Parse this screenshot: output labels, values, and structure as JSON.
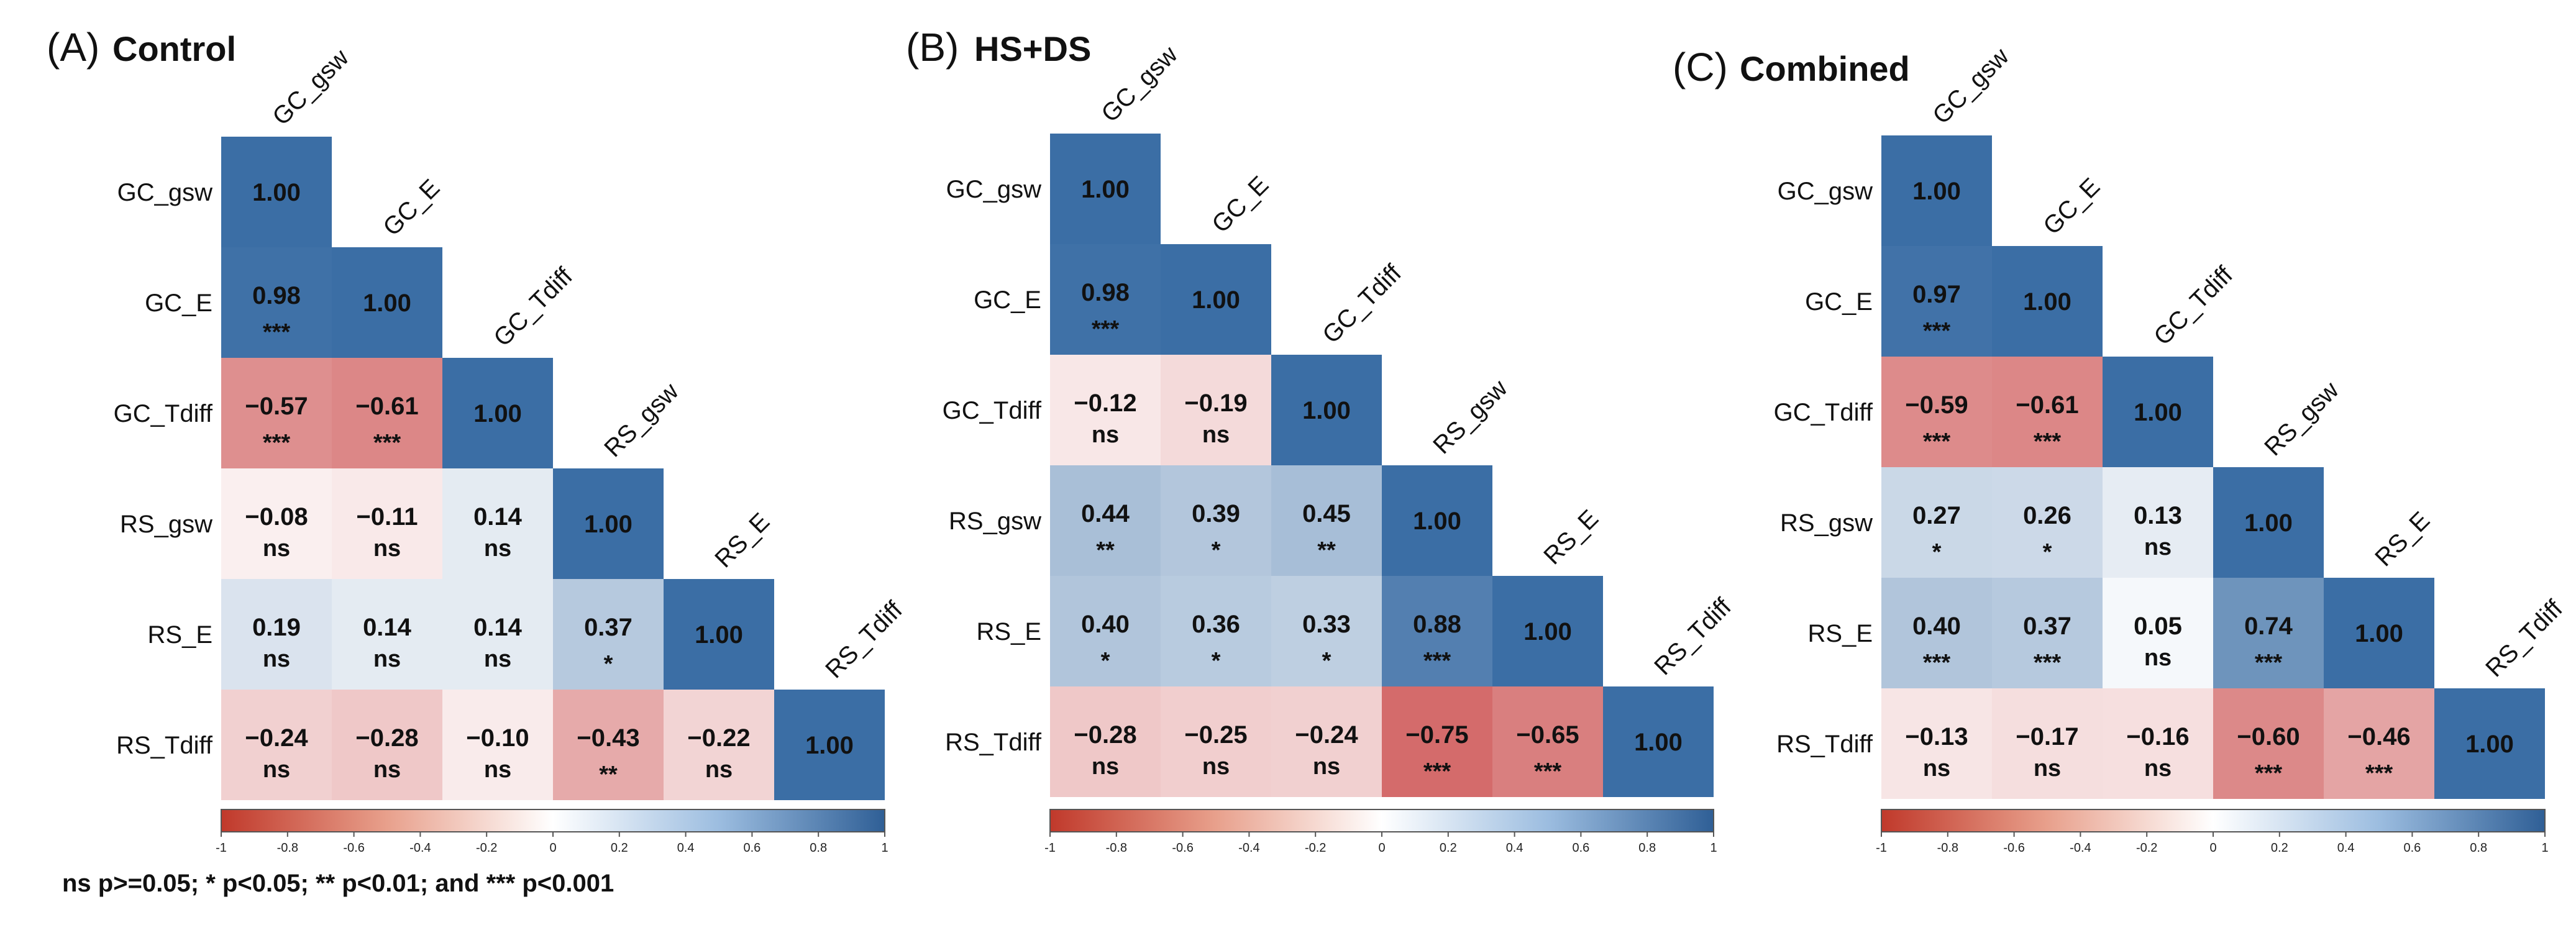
{
  "chart_data": [
    {
      "type": "heatmap",
      "panel_letter": "(A)",
      "title": "Control",
      "variables": [
        "GC_gsw",
        "GC_E",
        "GC_Tdiff",
        "RS_gsw",
        "RS_E",
        "RS_Tdiff"
      ],
      "values": [
        [
          1.0
        ],
        [
          0.98,
          1.0
        ],
        [
          -0.57,
          -0.61,
          1.0
        ],
        [
          -0.08,
          -0.11,
          0.14,
          1.0
        ],
        [
          0.19,
          0.14,
          0.14,
          0.37,
          1.0
        ],
        [
          -0.24,
          -0.28,
          -0.1,
          -0.43,
          -0.22,
          1.0
        ]
      ],
      "labels": [
        [
          "1.00"
        ],
        [
          "0.98",
          "1.00"
        ],
        [
          "−0.57",
          "−0.61",
          "1.00"
        ],
        [
          "−0.08",
          "−0.11",
          "0.14",
          "1.00"
        ],
        [
          "0.19",
          "0.14",
          "0.14",
          "0.37",
          "1.00"
        ],
        [
          "−0.24",
          "−0.28",
          "−0.10",
          "−0.43",
          "−0.22",
          "1.00"
        ]
      ],
      "significance": [
        [
          ""
        ],
        [
          "***",
          ""
        ],
        [
          "***",
          "***",
          ""
        ],
        [
          "ns",
          "ns",
          "ns",
          ""
        ],
        [
          "ns",
          "ns",
          "ns",
          "*",
          ""
        ],
        [
          "ns",
          "ns",
          "ns",
          "**",
          "ns",
          ""
        ]
      ],
      "colorbar": {
        "range": [
          -1,
          1
        ],
        "ticks": [
          "-1",
          "-0.8",
          "-0.6",
          "-0.4",
          "-0.2",
          "0",
          "0.2",
          "0.4",
          "0.6",
          "0.8",
          "1"
        ]
      }
    },
    {
      "type": "heatmap",
      "panel_letter": "(B)",
      "title": "HS+DS",
      "variables": [
        "GC_gsw",
        "GC_E",
        "GC_Tdiff",
        "RS_gsw",
        "RS_E",
        "RS_Tdiff"
      ],
      "values": [
        [
          1.0
        ],
        [
          0.98,
          1.0
        ],
        [
          -0.12,
          -0.19,
          1.0
        ],
        [
          0.44,
          0.39,
          0.45,
          1.0
        ],
        [
          0.4,
          0.36,
          0.33,
          0.88,
          1.0
        ],
        [
          -0.28,
          -0.25,
          -0.24,
          -0.75,
          -0.65,
          1.0
        ]
      ],
      "labels": [
        [
          "1.00"
        ],
        [
          "0.98",
          "1.00"
        ],
        [
          "−0.12",
          "−0.19",
          "1.00"
        ],
        [
          "0.44",
          "0.39",
          "0.45",
          "1.00"
        ],
        [
          "0.40",
          "0.36",
          "0.33",
          "0.88",
          "1.00"
        ],
        [
          "−0.28",
          "−0.25",
          "−0.24",
          "−0.75",
          "−0.65",
          "1.00"
        ]
      ],
      "significance": [
        [
          ""
        ],
        [
          "***",
          ""
        ],
        [
          "ns",
          "ns",
          ""
        ],
        [
          "**",
          "*",
          "**",
          ""
        ],
        [
          "*",
          "*",
          "*",
          "***",
          ""
        ],
        [
          "ns",
          "ns",
          "ns",
          "***",
          "***",
          ""
        ]
      ],
      "colorbar": {
        "range": [
          -1,
          1
        ],
        "ticks": [
          "-1",
          "-0.8",
          "-0.6",
          "-0.4",
          "-0.2",
          "0",
          "0.2",
          "0.4",
          "0.6",
          "0.8",
          "1"
        ]
      }
    },
    {
      "type": "heatmap",
      "panel_letter": "(C)",
      "title": "Combined",
      "variables": [
        "GC_gsw",
        "GC_E",
        "GC_Tdiff",
        "RS_gsw",
        "RS_E",
        "RS_Tdiff"
      ],
      "values": [
        [
          1.0
        ],
        [
          0.97,
          1.0
        ],
        [
          -0.59,
          -0.61,
          1.0
        ],
        [
          0.27,
          0.26,
          0.13,
          1.0
        ],
        [
          0.4,
          0.37,
          0.05,
          0.74,
          1.0
        ],
        [
          -0.13,
          -0.17,
          -0.16,
          -0.6,
          -0.46,
          1.0
        ]
      ],
      "labels": [
        [
          "1.00"
        ],
        [
          "0.97",
          "1.00"
        ],
        [
          "−0.59",
          "−0.61",
          "1.00"
        ],
        [
          "0.27",
          "0.26",
          "0.13",
          "1.00"
        ],
        [
          "0.40",
          "0.37",
          "0.05",
          "0.74",
          "1.00"
        ],
        [
          "−0.13",
          "−0.17",
          "−0.16",
          "−0.60",
          "−0.46",
          "1.00"
        ]
      ],
      "significance": [
        [
          ""
        ],
        [
          "***",
          ""
        ],
        [
          "***",
          "***",
          ""
        ],
        [
          "*",
          "*",
          "ns",
          ""
        ],
        [
          "***",
          "***",
          "ns",
          "***",
          ""
        ],
        [
          "ns",
          "ns",
          "ns",
          "***",
          "***",
          ""
        ]
      ],
      "colorbar": {
        "range": [
          -1,
          1
        ],
        "ticks": [
          "-1",
          "-0.8",
          "-0.6",
          "-0.4",
          "-0.2",
          "0",
          "0.2",
          "0.4",
          "0.6",
          "0.8",
          "1"
        ]
      }
    }
  ],
  "colors": {
    "negative": "#c53a3a",
    "neutral": "#ffffff",
    "positive": "#3b6ea5"
  },
  "legend_note": "ns p>=0.05; * p<0.05; ** p<0.01; and *** p<0.001"
}
